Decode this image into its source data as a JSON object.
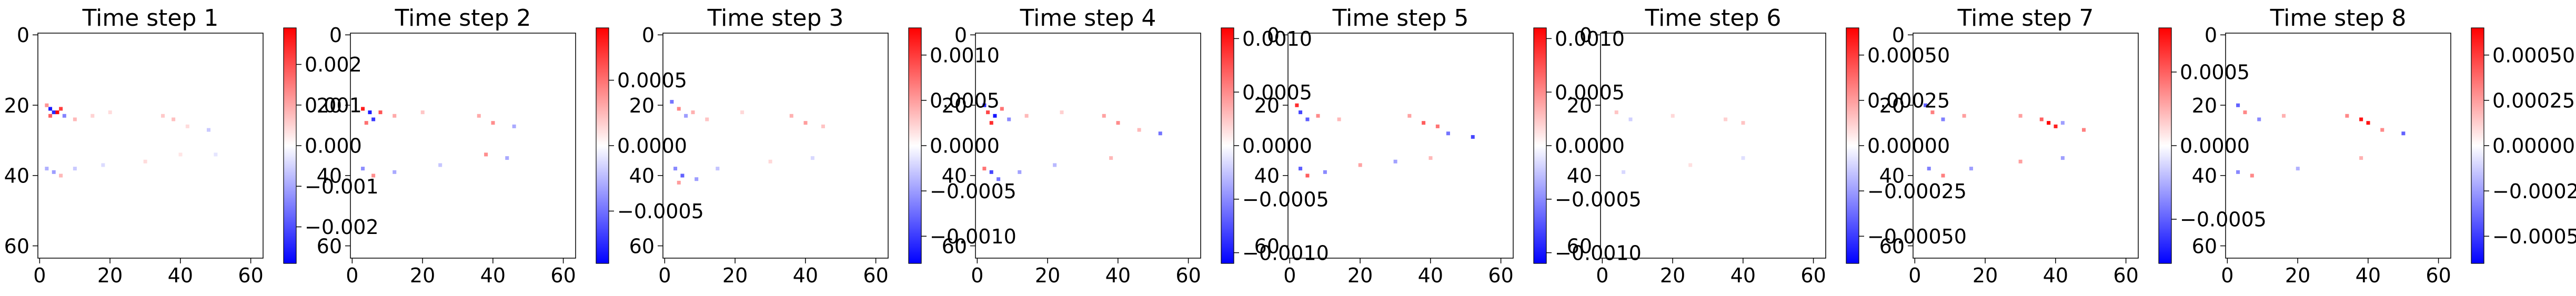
{
  "chart_data": [
    {
      "type": "heatmap",
      "title": "Time step 1",
      "x_ticks": [
        0,
        20,
        40,
        60
      ],
      "y_ticks": [
        0,
        20,
        40,
        60
      ],
      "xlim": [
        -0.5,
        63.5
      ],
      "ylim": [
        63.5,
        -0.5
      ],
      "colormap": "bwr",
      "vmin": -0.0029,
      "vmax": 0.0029,
      "colorbar_ticks": [
        -0.002,
        -0.001,
        0.0,
        0.001,
        0.002
      ],
      "colorbar_tick_labels": [
        "−0.002",
        "−0.001",
        "0.000",
        "0.001",
        "0.002"
      ],
      "features": [
        {
          "x": 3,
          "y": 21,
          "value": -0.0026
        },
        {
          "x": 4,
          "y": 22,
          "value": -0.0024
        },
        {
          "x": 5,
          "y": 22,
          "value": 0.0028
        },
        {
          "x": 6,
          "y": 21,
          "value": 0.0022
        },
        {
          "x": 3,
          "y": 23,
          "value": 0.0018
        },
        {
          "x": 2,
          "y": 20,
          "value": 0.0012
        },
        {
          "x": 7,
          "y": 23,
          "value": -0.0014
        },
        {
          "x": 10,
          "y": 24,
          "value": 0.0008
        },
        {
          "x": 15,
          "y": 23,
          "value": 0.0005
        },
        {
          "x": 20,
          "y": 22,
          "value": 0.0004
        },
        {
          "x": 35,
          "y": 23,
          "value": 0.0006
        },
        {
          "x": 38,
          "y": 24,
          "value": 0.0007
        },
        {
          "x": 42,
          "y": 26,
          "value": 0.0004
        },
        {
          "x": 48,
          "y": 27,
          "value": -0.0006
        },
        {
          "x": 2,
          "y": 38,
          "value": -0.0009
        },
        {
          "x": 4,
          "y": 39,
          "value": -0.0011
        },
        {
          "x": 6,
          "y": 40,
          "value": 0.0008
        },
        {
          "x": 10,
          "y": 38,
          "value": -0.0006
        },
        {
          "x": 18,
          "y": 37,
          "value": -0.0004
        },
        {
          "x": 30,
          "y": 36,
          "value": 0.0004
        },
        {
          "x": 40,
          "y": 34,
          "value": 0.0003
        },
        {
          "x": 50,
          "y": 34,
          "value": -0.0003
        }
      ]
    },
    {
      "type": "heatmap",
      "title": "Time step 2",
      "x_ticks": [
        0,
        20,
        40,
        60
      ],
      "y_ticks": [
        0,
        20,
        40,
        60
      ],
      "xlim": [
        -0.5,
        63.5
      ],
      "ylim": [
        63.5,
        -0.5
      ],
      "colormap": "bwr",
      "vmin": -0.0009,
      "vmax": 0.0009,
      "colorbar_ticks": [
        -0.0005,
        0.0,
        0.0005
      ],
      "colorbar_tick_labels": [
        "−0.0005",
        "0.0000",
        "0.0005"
      ],
      "features": [
        {
          "x": 3,
          "y": 21,
          "value": 0.0008
        },
        {
          "x": 5,
          "y": 22,
          "value": -0.0008
        },
        {
          "x": 6,
          "y": 24,
          "value": -0.0007
        },
        {
          "x": 8,
          "y": 22,
          "value": 0.0006
        },
        {
          "x": 4,
          "y": 25,
          "value": 0.0005
        },
        {
          "x": 12,
          "y": 23,
          "value": 0.0003
        },
        {
          "x": 20,
          "y": 22,
          "value": 0.0002
        },
        {
          "x": 36,
          "y": 23,
          "value": 0.0003
        },
        {
          "x": 40,
          "y": 25,
          "value": 0.0004
        },
        {
          "x": 46,
          "y": 26,
          "value": -0.0003
        },
        {
          "x": 3,
          "y": 38,
          "value": -0.0004
        },
        {
          "x": 6,
          "y": 40,
          "value": 0.0004
        },
        {
          "x": 12,
          "y": 39,
          "value": -0.0003
        },
        {
          "x": 25,
          "y": 37,
          "value": -0.0002
        },
        {
          "x": 38,
          "y": 34,
          "value": 0.0004
        },
        {
          "x": 44,
          "y": 35,
          "value": -0.0003
        }
      ]
    },
    {
      "type": "heatmap",
      "title": "Time step 3",
      "x_ticks": [
        0,
        20,
        40,
        60
      ],
      "y_ticks": [
        0,
        20,
        40,
        60
      ],
      "xlim": [
        -0.5,
        63.5
      ],
      "ylim": [
        63.5,
        -0.5
      ],
      "colormap": "bwr",
      "vmin": -0.0013,
      "vmax": 0.0013,
      "colorbar_ticks": [
        -0.001,
        -0.0005,
        0.0,
        0.0005,
        0.001
      ],
      "colorbar_tick_labels": [
        "−0.0010",
        "−0.0005",
        "0.0000",
        "0.0005",
        "0.0010"
      ],
      "features": [
        {
          "x": 2,
          "y": 19,
          "value": -0.0007
        },
        {
          "x": 4,
          "y": 21,
          "value": 0.0006
        },
        {
          "x": 6,
          "y": 23,
          "value": -0.0005
        },
        {
          "x": 8,
          "y": 22,
          "value": 0.0004
        },
        {
          "x": 12,
          "y": 24,
          "value": 0.0003
        },
        {
          "x": 22,
          "y": 22,
          "value": 0.0002
        },
        {
          "x": 36,
          "y": 23,
          "value": 0.0004
        },
        {
          "x": 40,
          "y": 25,
          "value": 0.0005
        },
        {
          "x": 45,
          "y": 26,
          "value": 0.0003
        },
        {
          "x": 3,
          "y": 38,
          "value": -0.0006
        },
        {
          "x": 5,
          "y": 40,
          "value": -0.0008
        },
        {
          "x": 4,
          "y": 42,
          "value": 0.0005
        },
        {
          "x": 9,
          "y": 41,
          "value": -0.0005
        },
        {
          "x": 15,
          "y": 38,
          "value": -0.0003
        },
        {
          "x": 30,
          "y": 36,
          "value": 0.0002
        },
        {
          "x": 42,
          "y": 35,
          "value": -0.0002
        }
      ]
    },
    {
      "type": "heatmap",
      "title": "Time step 4",
      "x_ticks": [
        0,
        20,
        40,
        60
      ],
      "y_ticks": [
        0,
        20,
        40,
        60
      ],
      "xlim": [
        -0.5,
        63.5
      ],
      "ylim": [
        63.5,
        -0.5
      ],
      "colormap": "bwr",
      "vmin": -0.0011,
      "vmax": 0.0011,
      "colorbar_ticks": [
        -0.001,
        -0.0005,
        0.0,
        0.0005,
        0.001
      ],
      "colorbar_tick_labels": [
        "−0.0010",
        "−0.0005",
        "0.0000",
        "0.0005",
        "0.0010"
      ],
      "features": [
        {
          "x": 2,
          "y": 20,
          "value": -0.0009
        },
        {
          "x": 3,
          "y": 22,
          "value": 0.0008
        },
        {
          "x": 5,
          "y": 23,
          "value": -0.001
        },
        {
          "x": 4,
          "y": 25,
          "value": 0.0009
        },
        {
          "x": 7,
          "y": 21,
          "value": 0.0006
        },
        {
          "x": 9,
          "y": 24,
          "value": -0.0005
        },
        {
          "x": 14,
          "y": 23,
          "value": 0.0003
        },
        {
          "x": 24,
          "y": 22,
          "value": 0.0002
        },
        {
          "x": 36,
          "y": 23,
          "value": 0.0004
        },
        {
          "x": 40,
          "y": 25,
          "value": 0.0005
        },
        {
          "x": 46,
          "y": 27,
          "value": 0.0003
        },
        {
          "x": 52,
          "y": 28,
          "value": -0.0006
        },
        {
          "x": 2,
          "y": 38,
          "value": 0.0006
        },
        {
          "x": 4,
          "y": 39,
          "value": -0.0008
        },
        {
          "x": 6,
          "y": 41,
          "value": -0.0006
        },
        {
          "x": 12,
          "y": 39,
          "value": -0.0004
        },
        {
          "x": 22,
          "y": 37,
          "value": -0.0003
        },
        {
          "x": 38,
          "y": 35,
          "value": 0.0003
        }
      ]
    },
    {
      "type": "heatmap",
      "title": "Time step 5",
      "x_ticks": [
        0,
        20,
        40,
        60
      ],
      "y_ticks": [
        0,
        20,
        40,
        60
      ],
      "xlim": [
        -0.5,
        63.5
      ],
      "ylim": [
        63.5,
        -0.5
      ],
      "colormap": "bwr",
      "vmin": -0.0011,
      "vmax": 0.0011,
      "colorbar_ticks": [
        -0.001,
        -0.0005,
        0.0,
        0.0005,
        0.001
      ],
      "colorbar_tick_labels": [
        "−0.0010",
        "−0.0005",
        "0.0000",
        "0.0005",
        "0.0010"
      ],
      "features": [
        {
          "x": 2,
          "y": 20,
          "value": 0.0009
        },
        {
          "x": 3,
          "y": 22,
          "value": -0.0008
        },
        {
          "x": 5,
          "y": 24,
          "value": -0.0007
        },
        {
          "x": 8,
          "y": 23,
          "value": 0.0005
        },
        {
          "x": 14,
          "y": 24,
          "value": 0.0003
        },
        {
          "x": 34,
          "y": 23,
          "value": 0.0004
        },
        {
          "x": 38,
          "y": 25,
          "value": 0.0007
        },
        {
          "x": 42,
          "y": 26,
          "value": 0.0006
        },
        {
          "x": 45,
          "y": 28,
          "value": -0.0006
        },
        {
          "x": 52,
          "y": 29,
          "value": -0.0008
        },
        {
          "x": 3,
          "y": 38,
          "value": -0.0007
        },
        {
          "x": 5,
          "y": 40,
          "value": 0.0007
        },
        {
          "x": 10,
          "y": 39,
          "value": -0.0005
        },
        {
          "x": 20,
          "y": 37,
          "value": 0.0004
        },
        {
          "x": 30,
          "y": 36,
          "value": -0.0004
        },
        {
          "x": 40,
          "y": 35,
          "value": 0.0003
        }
      ]
    },
    {
      "type": "heatmap",
      "title": "Time step 6",
      "x_ticks": [
        0,
        20,
        40,
        60
      ],
      "y_ticks": [
        0,
        20,
        40,
        60
      ],
      "xlim": [
        -0.5,
        63.5
      ],
      "ylim": [
        63.5,
        -0.5
      ],
      "colormap": "bwr",
      "vmin": -0.00065,
      "vmax": 0.00065,
      "colorbar_ticks": [
        -0.0005,
        -0.00025,
        0.0,
        0.00025,
        0.0005
      ],
      "colorbar_tick_labels": [
        "−0.00050",
        "−0.00025",
        "0.00000",
        "0.00025",
        "0.00050"
      ],
      "features": [
        {
          "x": 4,
          "y": 22,
          "value": 0.00015
        },
        {
          "x": 8,
          "y": 24,
          "value": -0.00012
        },
        {
          "x": 20,
          "y": 23,
          "value": 0.0001
        },
        {
          "x": 35,
          "y": 24,
          "value": 0.00012
        },
        {
          "x": 40,
          "y": 25,
          "value": 0.00015
        },
        {
          "x": 6,
          "y": 39,
          "value": -0.0001
        },
        {
          "x": 25,
          "y": 37,
          "value": 8e-05
        },
        {
          "x": 40,
          "y": 35,
          "value": -8e-05
        }
      ]
    },
    {
      "type": "heatmap",
      "title": "Time step 7",
      "x_ticks": [
        0,
        20,
        40,
        60
      ],
      "y_ticks": [
        0,
        20,
        40,
        60
      ],
      "xlim": [
        -0.5,
        63.5
      ],
      "ylim": [
        63.5,
        -0.5
      ],
      "colormap": "bwr",
      "vmin": -0.0008,
      "vmax": 0.0008,
      "colorbar_ticks": [
        -0.0005,
        0.0,
        0.0005
      ],
      "colorbar_tick_labels": [
        "−0.0005",
        "0.0000",
        "0.0005"
      ],
      "features": [
        {
          "x": 3,
          "y": 20,
          "value": -0.0005
        },
        {
          "x": 5,
          "y": 22,
          "value": 0.0004
        },
        {
          "x": 8,
          "y": 24,
          "value": -0.0004
        },
        {
          "x": 14,
          "y": 23,
          "value": 0.0003
        },
        {
          "x": 30,
          "y": 23,
          "value": 0.0003
        },
        {
          "x": 36,
          "y": 24,
          "value": 0.0005
        },
        {
          "x": 38,
          "y": 25,
          "value": 0.0008
        },
        {
          "x": 40,
          "y": 26,
          "value": 0.0007
        },
        {
          "x": 42,
          "y": 25,
          "value": -0.0003
        },
        {
          "x": 48,
          "y": 27,
          "value": 0.0004
        },
        {
          "x": 4,
          "y": 38,
          "value": -0.0004
        },
        {
          "x": 8,
          "y": 40,
          "value": 0.0004
        },
        {
          "x": 16,
          "y": 38,
          "value": -0.0003
        },
        {
          "x": 30,
          "y": 36,
          "value": 0.0003
        },
        {
          "x": 42,
          "y": 35,
          "value": -0.0003
        }
      ]
    },
    {
      "type": "heatmap",
      "title": "Time step 8",
      "x_ticks": [
        0,
        20,
        40,
        60
      ],
      "y_ticks": [
        0,
        20,
        40,
        60
      ],
      "xlim": [
        -0.5,
        63.5
      ],
      "ylim": [
        63.5,
        -0.5
      ],
      "colormap": "bwr",
      "vmin": -0.00065,
      "vmax": 0.00065,
      "colorbar_ticks": [
        -0.0005,
        -0.00025,
        0.0,
        0.00025,
        0.0005
      ],
      "colorbar_tick_labels": [
        "−0.00050",
        "−0.00025",
        "0.00000",
        "0.00025",
        "0.00050"
      ],
      "features": [
        {
          "x": 3,
          "y": 20,
          "value": -0.0004
        },
        {
          "x": 5,
          "y": 22,
          "value": 0.0003
        },
        {
          "x": 9,
          "y": 24,
          "value": -0.0003
        },
        {
          "x": 16,
          "y": 23,
          "value": 0.0002
        },
        {
          "x": 34,
          "y": 23,
          "value": 0.0003
        },
        {
          "x": 38,
          "y": 24,
          "value": 0.0006
        },
        {
          "x": 40,
          "y": 25,
          "value": 0.0006
        },
        {
          "x": 44,
          "y": 27,
          "value": 0.0003
        },
        {
          "x": 50,
          "y": 28,
          "value": -0.0004
        },
        {
          "x": 3,
          "y": 39,
          "value": -0.0003
        },
        {
          "x": 7,
          "y": 40,
          "value": 0.0003
        },
        {
          "x": 20,
          "y": 38,
          "value": -0.0002
        },
        {
          "x": 38,
          "y": 35,
          "value": 0.0002
        }
      ]
    },
    {
      "type": "colorbar",
      "colormap": "bwr",
      "vmin": -0.0012,
      "vmax": 0.0012,
      "colorbar_ticks": [
        -0.001,
        -0.0005,
        0.0,
        0.0005,
        0.001
      ],
      "colorbar_tick_labels": [
        "−0.0010",
        "−0.0005",
        "0.0000",
        "0.0005",
        "0.0010"
      ]
    }
  ]
}
